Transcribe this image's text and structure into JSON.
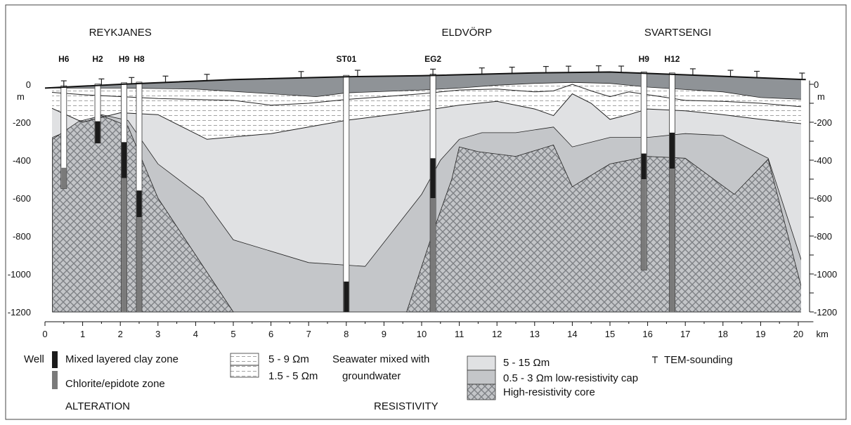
{
  "areas": [
    {
      "label": "REYKJANES",
      "x_km": 2.0
    },
    {
      "label": "ELDVÖRP",
      "x_km": 11.2
    },
    {
      "label": "SVARTSENGI",
      "x_km": 16.8
    }
  ],
  "wells": [
    {
      "label": "H6",
      "x_km": 0.5,
      "bottom_m": -550,
      "altered": [
        {
          "zone": "chlorite",
          "top": -440,
          "bottom": -550
        }
      ]
    },
    {
      "label": "H2",
      "x_km": 1.4,
      "bottom_m": -310,
      "altered": [
        {
          "zone": "clay",
          "top": -195,
          "bottom": -310
        }
      ]
    },
    {
      "label": "H9",
      "x_km": 2.1,
      "bottom_m": -1200,
      "altered": [
        {
          "zone": "clay",
          "top": -305,
          "bottom": -495
        },
        {
          "zone": "chlorite",
          "top": -495,
          "bottom": -1200
        }
      ]
    },
    {
      "label": "H8",
      "x_km": 2.5,
      "bottom_m": -1200,
      "altered": [
        {
          "zone": "clay",
          "top": -560,
          "bottom": -700
        },
        {
          "zone": "chlorite",
          "top": -700,
          "bottom": -1200
        }
      ]
    },
    {
      "label": "ST01",
      "x_km": 8.0,
      "bottom_m": -1200,
      "altered": [
        {
          "zone": "clay",
          "top": -1040,
          "bottom": -1200
        }
      ]
    },
    {
      "label": "EG2",
      "x_km": 10.3,
      "bottom_m": -1200,
      "altered": [
        {
          "zone": "clay",
          "top": -390,
          "bottom": -600
        },
        {
          "zone": "chlorite",
          "top": -600,
          "bottom": -1200
        }
      ]
    },
    {
      "label": "H9",
      "x_km": 15.9,
      "bottom_m": -980,
      "altered": [
        {
          "zone": "clay",
          "top": -365,
          "bottom": -500
        },
        {
          "zone": "chlorite",
          "top": -500,
          "bottom": -980
        }
      ]
    },
    {
      "label": "H12",
      "x_km": 16.65,
      "bottom_m": -1200,
      "altered": [
        {
          "zone": "clay",
          "top": -255,
          "bottom": -445
        },
        {
          "zone": "chlorite",
          "top": -445,
          "bottom": -1200
        }
      ]
    }
  ],
  "tem_soundings_km": [
    0.5,
    1.5,
    2.3,
    3.2,
    4.3,
    6.8,
    8.3,
    10.3,
    11.6,
    12.4,
    13.3,
    13.9,
    14.7,
    15.3,
    17.2,
    18.2,
    18.9,
    20.1
  ],
  "x_axis": {
    "min": 0,
    "max": 20,
    "unit_label": "km",
    "tick_labels": [
      "0",
      "1",
      "2",
      "3",
      "4",
      "5",
      "6",
      "7",
      "8",
      "9",
      "10",
      "11",
      "12",
      "13",
      "14",
      "15",
      "16",
      "17",
      "18",
      "19",
      "20"
    ]
  },
  "y_axis": {
    "min": -1200,
    "max": 0,
    "unit_label": "m",
    "tick_labels": [
      "0",
      "-200",
      "-400",
      "-600",
      "-800",
      "-1000",
      "-1200"
    ],
    "tick_values": [
      0,
      -200,
      -400,
      -600,
      -800,
      -1000,
      -1200
    ]
  },
  "surface": [
    [
      0,
      -20
    ],
    [
      2,
      0
    ],
    [
      5,
      25
    ],
    [
      8,
      40
    ],
    [
      10,
      45
    ],
    [
      13,
      60
    ],
    [
      15,
      65
    ],
    [
      17,
      50
    ],
    [
      20.2,
      25
    ]
  ],
  "layers": {
    "dark_cap_base": [
      [
        0,
        -20
      ],
      [
        2,
        -20
      ],
      [
        4,
        -25
      ],
      [
        6,
        -50
      ],
      [
        7.2,
        -65
      ],
      [
        8,
        -45
      ],
      [
        10,
        -30
      ],
      [
        11,
        -20
      ],
      [
        12,
        -5
      ],
      [
        13,
        5
      ],
      [
        14,
        10
      ],
      [
        15,
        5
      ],
      [
        16,
        -15
      ],
      [
        18,
        -40
      ],
      [
        19,
        -70
      ],
      [
        20.2,
        -80
      ]
    ],
    "seawater_upper_base": [
      [
        0,
        -40
      ],
      [
        1,
        -55
      ],
      [
        3,
        -75
      ],
      [
        5,
        -85
      ],
      [
        6,
        -110
      ],
      [
        7,
        -100
      ],
      [
        8,
        -80
      ],
      [
        10,
        -50
      ],
      [
        11,
        -30
      ],
      [
        12,
        -25
      ],
      [
        13,
        -40
      ],
      [
        13.5,
        -35
      ],
      [
        14,
        0
      ],
      [
        14.5,
        -35
      ],
      [
        15,
        -65
      ],
      [
        15.5,
        -40
      ],
      [
        16,
        -55
      ],
      [
        17,
        -85
      ],
      [
        18,
        -90
      ],
      [
        19,
        -100
      ],
      [
        20.2,
        -120
      ]
    ],
    "seawater_lower_base": [
      [
        0,
        -110
      ],
      [
        1,
        -200
      ],
      [
        2,
        -150
      ],
      [
        3,
        -160
      ],
      [
        4.3,
        -290
      ],
      [
        6,
        -260
      ],
      [
        8,
        -190
      ],
      [
        10,
        -140
      ],
      [
        11,
        -110
      ],
      [
        12,
        -90
      ],
      [
        13,
        -130
      ],
      [
        13.5,
        -165
      ],
      [
        14,
        -50
      ],
      [
        14.5,
        -100
      ],
      [
        15,
        -185
      ],
      [
        15.5,
        -160
      ],
      [
        16,
        -130
      ],
      [
        17,
        -140
      ],
      [
        18,
        -160
      ],
      [
        19,
        -185
      ],
      [
        20.2,
        -210
      ]
    ],
    "cap_top": [
      [
        0.2,
        -280
      ],
      [
        0.8,
        -230
      ],
      [
        1.5,
        -170
      ],
      [
        2.2,
        -190
      ],
      [
        3,
        -420
      ],
      [
        4.2,
        -600
      ],
      [
        5,
        -820
      ],
      [
        7,
        -940
      ],
      [
        8,
        -960
      ],
      [
        8.5,
        -960
      ],
      [
        10,
        -580
      ],
      [
        10.5,
        -400
      ],
      [
        11,
        -290
      ],
      [
        11.6,
        -255
      ],
      [
        12.5,
        -255
      ],
      [
        13.5,
        -225
      ],
      [
        14,
        -330
      ],
      [
        15,
        -280
      ],
      [
        16,
        -280
      ],
      [
        17,
        -260
      ],
      [
        18,
        -270
      ],
      [
        19.2,
        -390
      ],
      [
        20.2,
        -1000
      ]
    ],
    "core_top": [
      [
        0.2,
        -1200
      ],
      [
        0.2,
        -290
      ],
      [
        0.9,
        -195
      ],
      [
        1.5,
        -175
      ],
      [
        2.2,
        -190
      ],
      [
        3,
        -640
      ],
      [
        4.3,
        -855
      ],
      [
        7,
        -945
      ],
      [
        8,
        -960
      ],
      [
        8.5,
        -960
      ],
      [
        10.5,
        -400
      ],
      [
        11,
        -330
      ],
      [
        11.5,
        -355
      ],
      [
        12.5,
        -380
      ],
      [
        13.5,
        -320
      ],
      [
        14,
        -540
      ],
      [
        15,
        -420
      ],
      [
        16,
        -380
      ],
      [
        17,
        -390
      ],
      [
        18.3,
        -580
      ],
      [
        19.2,
        -395
      ],
      [
        20.2,
        -1160
      ],
      [
        20.2,
        -1200
      ]
    ],
    "core_left_edge": [
      [
        0.2,
        -1200
      ],
      [
        0.2,
        -290
      ],
      [
        0.9,
        -195
      ],
      [
        1.5,
        -165
      ],
      [
        2.2,
        -220
      ],
      [
        3,
        -600
      ],
      [
        4,
        -900
      ],
      [
        5,
        -1200
      ]
    ],
    "core_right_edge": [
      [
        9.6,
        -1200
      ],
      [
        10.3,
        -780
      ],
      [
        10.8,
        -500
      ],
      [
        11,
        -330
      ],
      [
        11.5,
        -355
      ],
      [
        12.5,
        -380
      ],
      [
        13.5,
        -320
      ],
      [
        14,
        -540
      ],
      [
        15,
        -420
      ],
      [
        16,
        -380
      ],
      [
        17,
        -390
      ],
      [
        18.3,
        -580
      ],
      [
        19.2,
        -395
      ],
      [
        20.2,
        -1160
      ],
      [
        20.2,
        -1200
      ]
    ],
    "cap_left_edge": [
      [
        0.2,
        -1200
      ],
      [
        0.2,
        -280
      ],
      [
        0.8,
        -230
      ],
      [
        1.5,
        -160
      ],
      [
        2.2,
        -190
      ],
      [
        3,
        -420
      ],
      [
        4.2,
        -600
      ],
      [
        5,
        -820
      ],
      [
        7,
        -940
      ],
      [
        8.5,
        -960
      ],
      [
        10,
        -580
      ],
      [
        10.5,
        -400
      ],
      [
        11,
        -290
      ],
      [
        11.6,
        -255
      ],
      [
        12.5,
        -255
      ],
      [
        13.5,
        -225
      ],
      [
        14,
        -330
      ],
      [
        15,
        -280
      ],
      [
        16,
        -280
      ],
      [
        17,
        -260
      ],
      [
        18,
        -270
      ],
      [
        19.2,
        -390
      ],
      [
        20.2,
        -1000
      ],
      [
        20.2,
        -1200
      ]
    ]
  },
  "legend": {
    "well_title": "Well",
    "clay_zone": "Mixed layered clay zone",
    "chlorite_zone": "Chlorite/epidote zone",
    "alteration_heading": "ALTERATION",
    "res_5_9": "5 - 9 Ωm",
    "seawater_1": "Seawater mixed with",
    "res_1_5_5": "1.5 - 5 Ωm",
    "seawater_2": "groundwater",
    "resistivity_heading": "RESISTIVITY",
    "res_5_15": "5 - 15 Ωm",
    "res_cap": "0.5 - 3 Ωm low-resistivity cap",
    "res_core": "High-resistivity core",
    "tem": "TEM-sounding"
  },
  "colors": {
    "dark_cap": "#8f9397",
    "light_zone": "#e0e1e3",
    "cap": "#c4c6c9",
    "core_bg": "#c3c5c8",
    "core_pattern": "#7e8185",
    "seawater_lines": "#8c8c8c",
    "clay": "#1b1b1b",
    "chlorite": "#7a7a7a"
  }
}
